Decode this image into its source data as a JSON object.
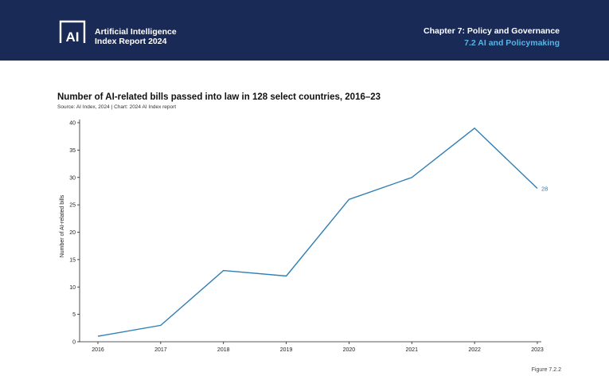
{
  "header": {
    "brand_line1": "Artificial Intelligence",
    "brand_line2": "Index Report 2024",
    "chapter": "Chapter 7: Policy and Governance",
    "section": "7.2 AI and Policymaking",
    "logo_text": "AI"
  },
  "colors": {
    "header_bg": "#1a2a57",
    "accent": "#59b3e6",
    "line": "#2e7fb5"
  },
  "chart_data": {
    "type": "line",
    "title": "Number of AI-related bills passed into law in 128 select countries, 2016–23",
    "source": "Source: AI Index, 2024 | Chart: 2024 AI Index report",
    "xlabel": "",
    "ylabel": "Number of AI-related bills",
    "x": [
      "2016",
      "2017",
      "2018",
      "2019",
      "2020",
      "2021",
      "2022",
      "2023"
    ],
    "values": [
      1,
      3,
      13,
      12,
      26,
      30,
      39,
      28
    ],
    "yticks": [
      0,
      5,
      10,
      15,
      20,
      25,
      30,
      35,
      40
    ],
    "ylim": [
      0,
      40
    ],
    "end_label": "28",
    "grid": false
  },
  "footer": {
    "figure": "Figure 7.2.2"
  }
}
